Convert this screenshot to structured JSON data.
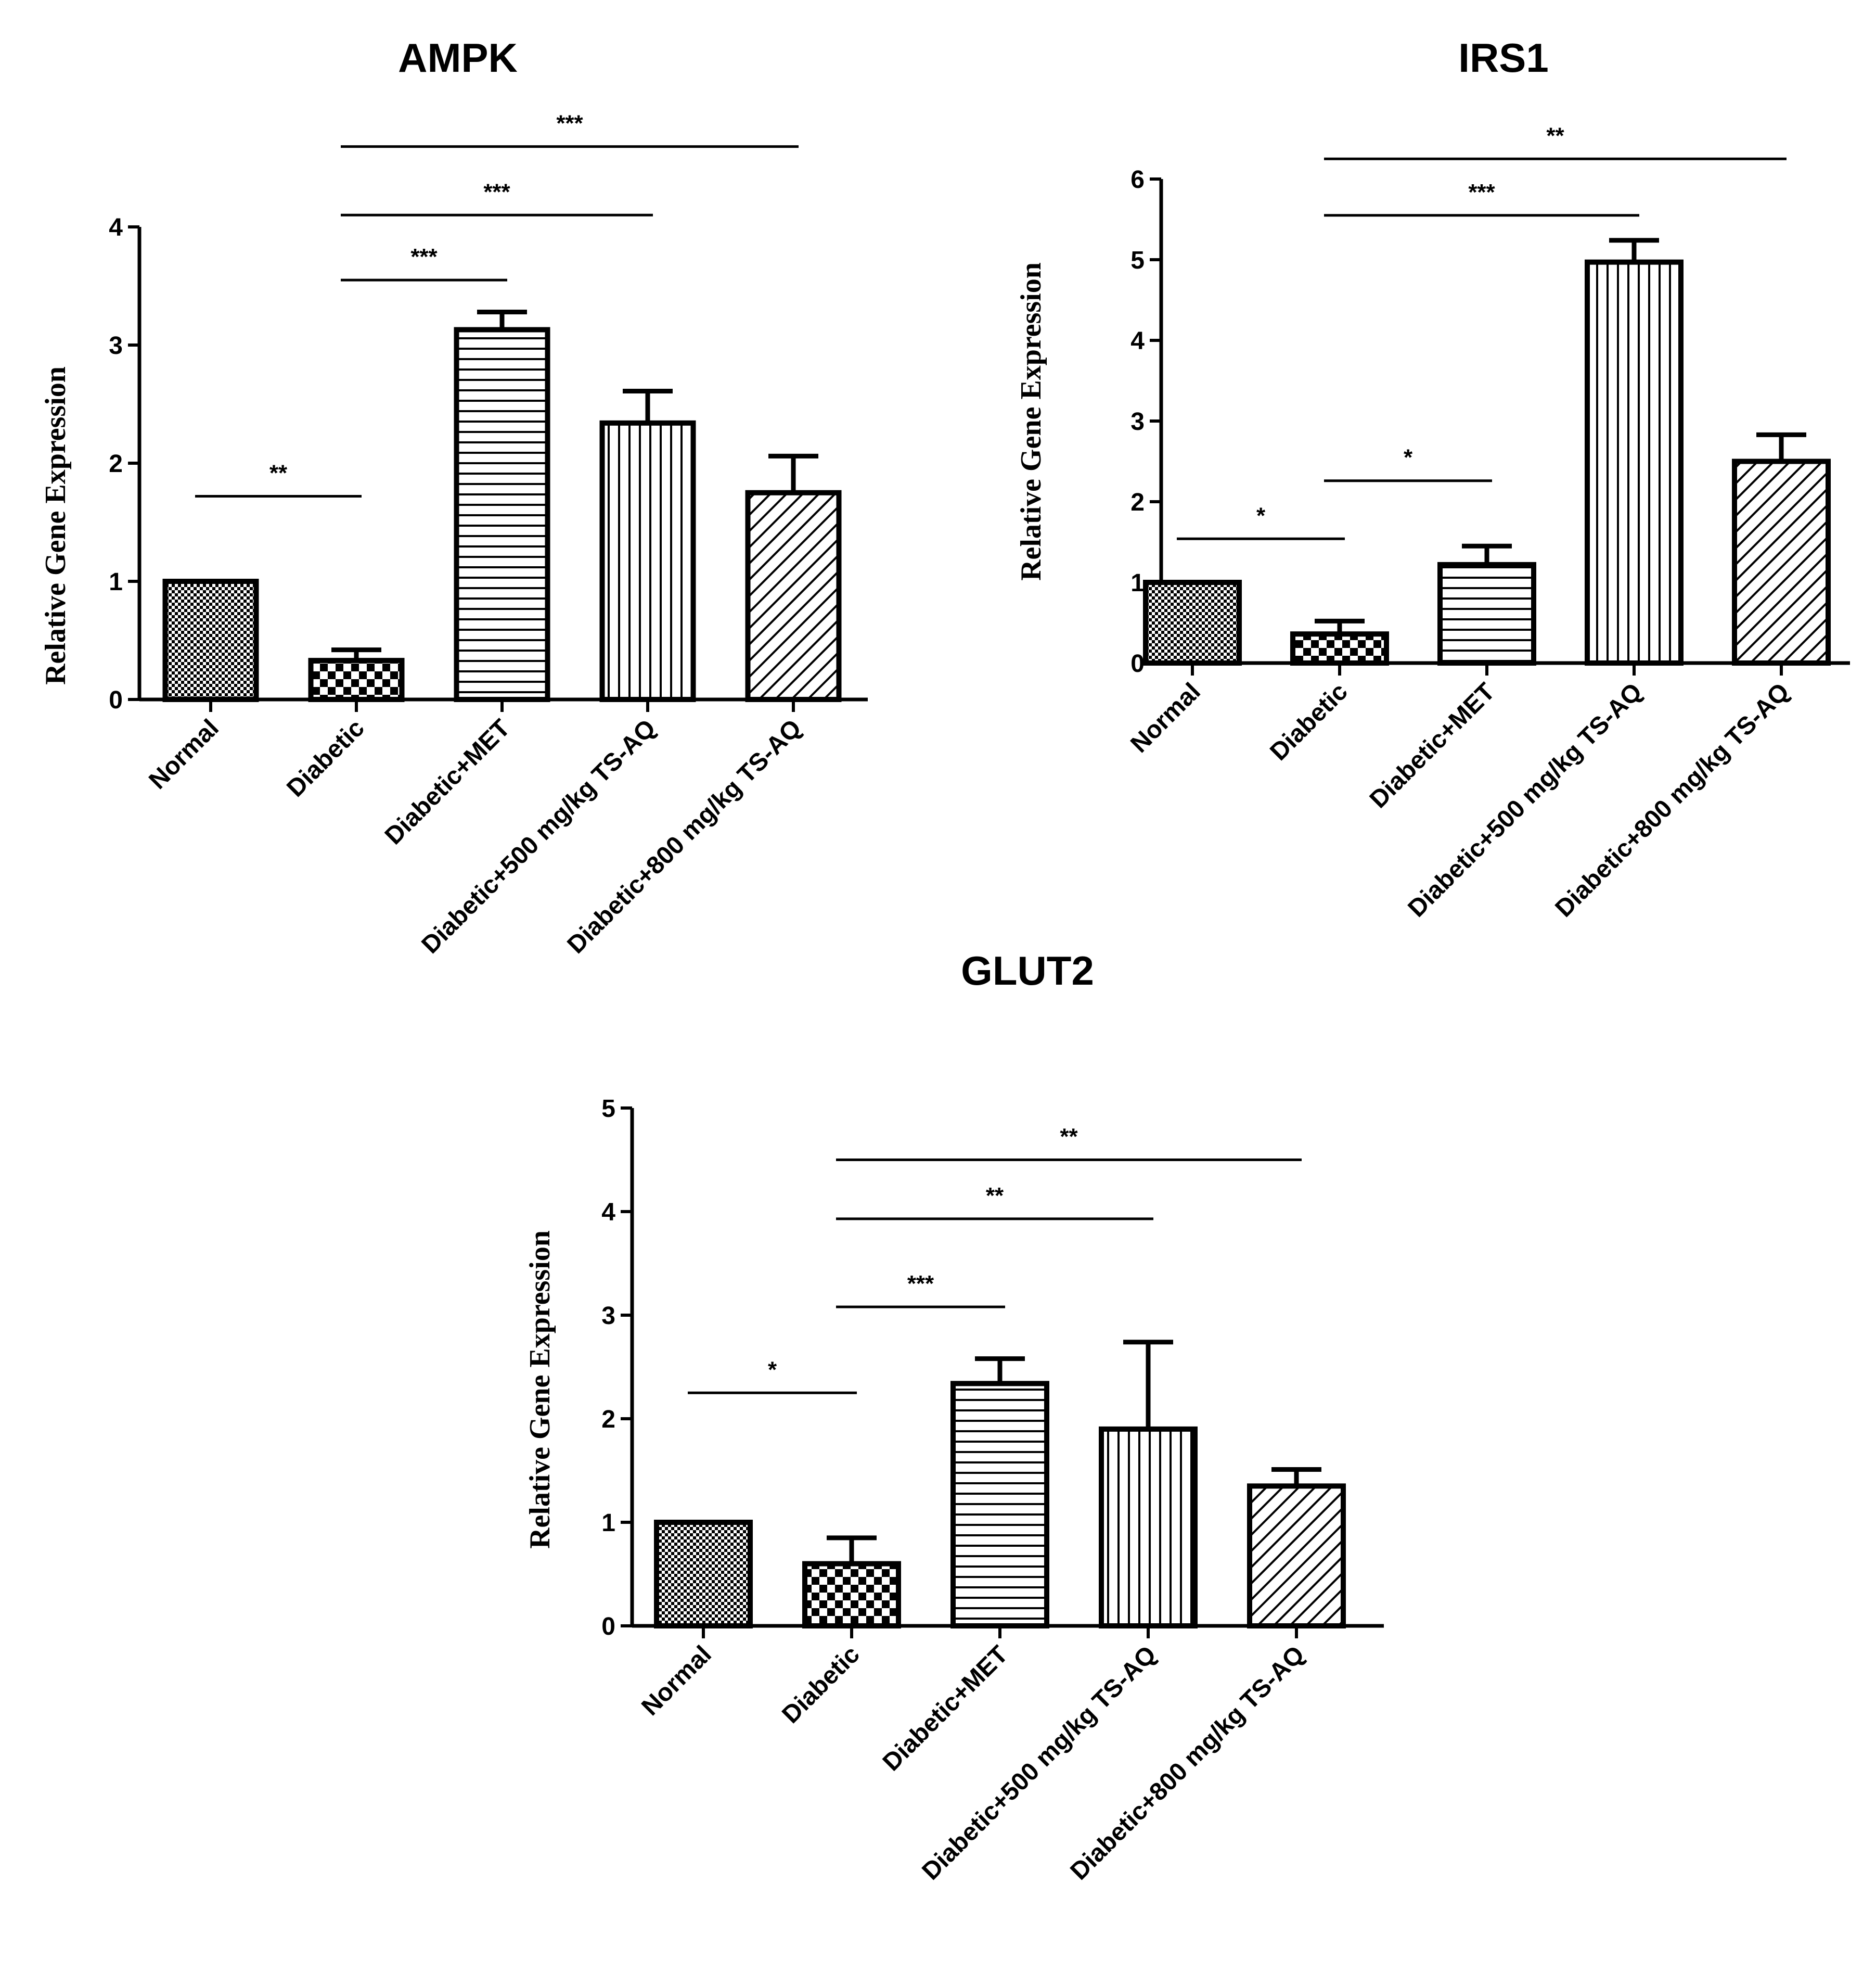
{
  "chart_data": [
    {
      "id": "ampk",
      "type": "bar",
      "title": "AMPK",
      "ylabel": "Relative Gene Expression",
      "xlabel": "",
      "ylim": [
        0,
        4
      ],
      "yticks": [
        0,
        1,
        2,
        3,
        4
      ],
      "categories": [
        "Normal",
        "Diabetic",
        "Diabetic+MET",
        "Diabetic+500 mg/kg TS-AQ",
        "Diabetic+800 mg/kg TS-AQ"
      ],
      "values": [
        1.0,
        0.33,
        3.13,
        2.34,
        1.75
      ],
      "errors": [
        0.0,
        0.09,
        0.15,
        0.27,
        0.31
      ],
      "significance": [
        {
          "from": 0,
          "to": 1,
          "label": "**",
          "y": 1.72
        },
        {
          "from": 1,
          "to": 2,
          "label": "***",
          "y": 3.55
        },
        {
          "from": 1,
          "to": 3,
          "label": "***",
          "y": 4.1
        },
        {
          "from": 1,
          "to": 4,
          "label": "***",
          "y": 4.68
        }
      ]
    },
    {
      "id": "irs1",
      "type": "bar",
      "title": "IRS1",
      "ylabel": "Relative Gene Expression",
      "xlabel": "",
      "ylim": [
        0,
        6
      ],
      "yticks": [
        0,
        1,
        2,
        3,
        4,
        5,
        6
      ],
      "categories": [
        "Normal",
        "Diabetic",
        "Diabetic+MET",
        "Diabetic+500 mg/kg TS-AQ",
        "Diabetic+800 mg/kg TS-AQ"
      ],
      "values": [
        1.0,
        0.36,
        1.22,
        4.97,
        2.5
      ],
      "errors": [
        0.0,
        0.16,
        0.23,
        0.27,
        0.33
      ],
      "significance": [
        {
          "from": 0,
          "to": 1,
          "label": "*",
          "y": 1.54
        },
        {
          "from": 1,
          "to": 2,
          "label": "*",
          "y": 2.26
        },
        {
          "from": 1,
          "to": 3,
          "label": "***",
          "y": 5.55
        },
        {
          "from": 1,
          "to": 4,
          "label": "**",
          "y": 6.25
        }
      ]
    },
    {
      "id": "glut2",
      "type": "bar",
      "title": "GLUT2",
      "ylabel": "Relative Gene Expression",
      "xlabel": "",
      "ylim": [
        0,
        5
      ],
      "yticks": [
        0,
        1,
        2,
        3,
        4,
        5
      ],
      "categories": [
        "Normal",
        "Diabetic",
        "Diabetic+MET",
        "Diabetic+500 mg/kg TS-AQ",
        "Diabetic+800 mg/kg TS-AQ"
      ],
      "values": [
        1.0,
        0.6,
        2.34,
        1.9,
        1.35
      ],
      "errors": [
        0.0,
        0.25,
        0.24,
        0.84,
        0.16
      ],
      "significance": [
        {
          "from": 0,
          "to": 1,
          "label": "*",
          "y": 2.25
        },
        {
          "from": 1,
          "to": 2,
          "label": "***",
          "y": 3.08
        },
        {
          "from": 1,
          "to": 3,
          "label": "**",
          "y": 3.93
        },
        {
          "from": 1,
          "to": 4,
          "label": "**",
          "y": 4.5
        }
      ]
    }
  ],
  "colors": {
    "ink": "#000000",
    "background": "#ffffff"
  },
  "patterns": [
    "checker-fine-pattern",
    "checker-coarse-pattern",
    "horizontal-lines-pattern",
    "vertical-lines-pattern",
    "diagonal-lines-pattern"
  ]
}
